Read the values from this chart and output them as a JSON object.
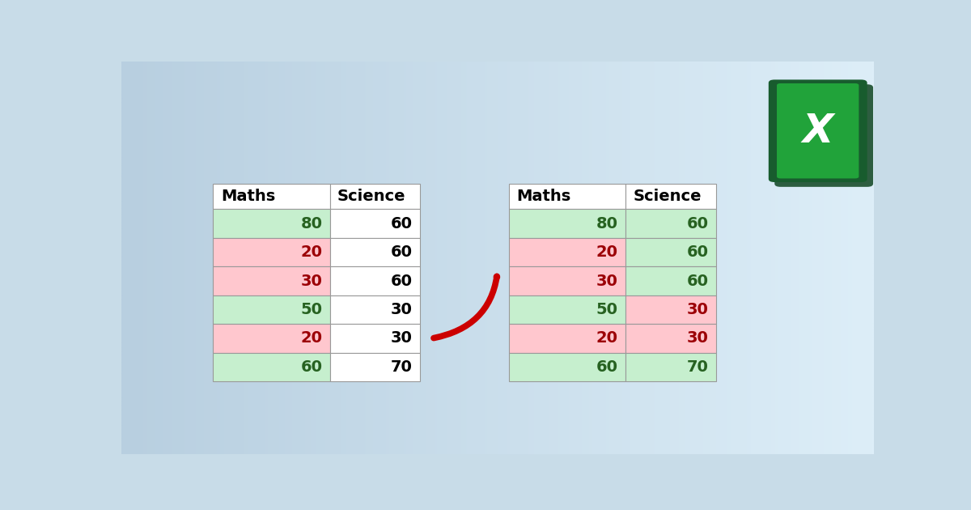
{
  "bg_gradient_left": "#b8cfe0",
  "bg_gradient_right": "#ddeef8",
  "table_data": [
    80,
    20,
    30,
    50,
    20,
    60
  ],
  "science_data": [
    60,
    60,
    60,
    30,
    30,
    70
  ],
  "maths_colors_left": [
    "#c6efce",
    "#ffc7ce",
    "#ffc7ce",
    "#c6efce",
    "#ffc7ce",
    "#c6efce"
  ],
  "science_colors_left": [
    "#ffffff",
    "#ffffff",
    "#ffffff",
    "#ffffff",
    "#ffffff",
    "#ffffff"
  ],
  "maths_colors_right": [
    "#c6efce",
    "#ffc7ce",
    "#ffc7ce",
    "#c6efce",
    "#ffc7ce",
    "#c6efce"
  ],
  "science_colors_right": [
    "#c6efce",
    "#c6efce",
    "#c6efce",
    "#ffc7ce",
    "#ffc7ce",
    "#c6efce"
  ],
  "maths_text_colors_left": [
    "#276221",
    "#9c0006",
    "#9c0006",
    "#276221",
    "#9c0006",
    "#276221"
  ],
  "science_text_colors_left": [
    "#000000",
    "#000000",
    "#000000",
    "#000000",
    "#000000",
    "#000000"
  ],
  "maths_text_colors_right": [
    "#276221",
    "#9c0006",
    "#9c0006",
    "#276221",
    "#9c0006",
    "#276221"
  ],
  "science_text_colors_right": [
    "#276221",
    "#276221",
    "#276221",
    "#9c0006",
    "#9c0006",
    "#276221"
  ],
  "header": [
    "Maths",
    "Science"
  ],
  "arrow_color": "#cc0000",
  "excel_dark_green": "#185c2e",
  "excel_mid_green": "#1e7e3e",
  "excel_bright_green": "#21a33a"
}
